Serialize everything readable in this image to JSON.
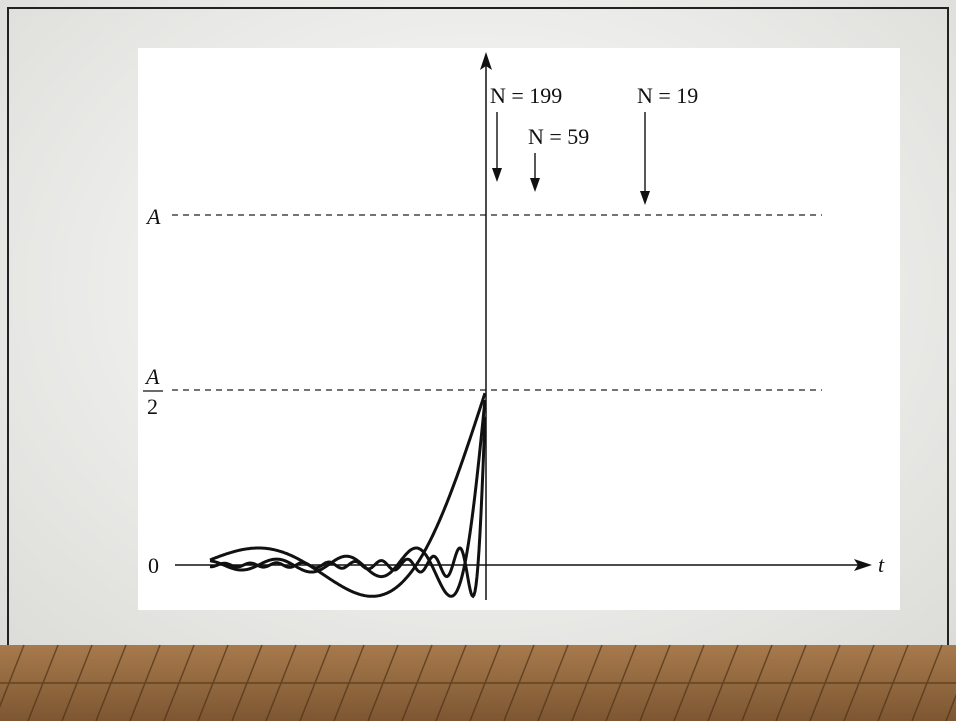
{
  "annotations": [
    "N = 199",
    "N = 59",
    "N = 19"
  ],
  "axis_labels": {
    "level_a": "A",
    "half_numerator": "A",
    "half_denominator": "2",
    "zero": "0",
    "t": "t"
  }
}
